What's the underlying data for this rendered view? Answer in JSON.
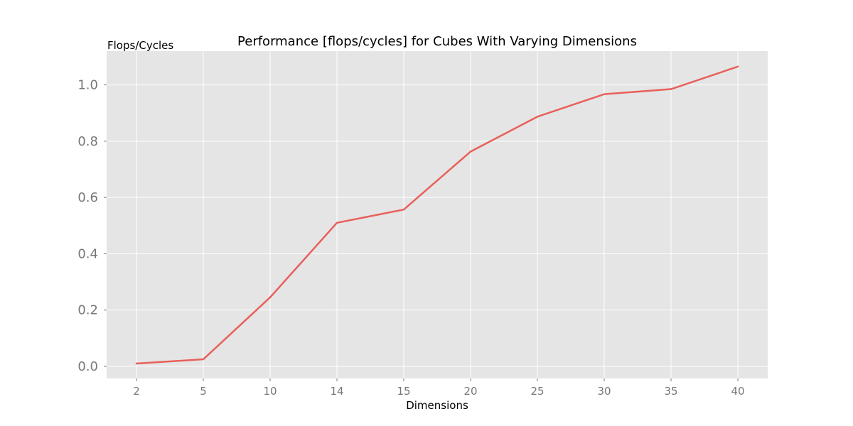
{
  "chart_data": {
    "type": "line",
    "title": "Performance [flops/cycles] for Cubes With Varying Dimensions",
    "xlabel": "Dimensions",
    "ylabel": "Flops/Cycles",
    "categories": [
      "2",
      "5",
      "10",
      "14",
      "15",
      "20",
      "25",
      "30",
      "35",
      "40"
    ],
    "values": [
      0.01,
      0.025,
      0.245,
      0.51,
      0.557,
      0.763,
      0.887,
      0.967,
      0.985,
      1.065
    ],
    "y_ticks": [
      "0.0",
      "0.2",
      "0.4",
      "0.6",
      "0.8",
      "1.0"
    ],
    "y_tick_values": [
      0.0,
      0.2,
      0.4,
      0.6,
      0.8,
      1.0
    ],
    "ylim": [
      -0.043,
      1.12
    ],
    "grid": true,
    "style": {
      "plot_background": "#e5e5e5",
      "grid_color": "#ffffff",
      "line_color": "#e8605b",
      "tick_label_color": "#777777"
    }
  }
}
